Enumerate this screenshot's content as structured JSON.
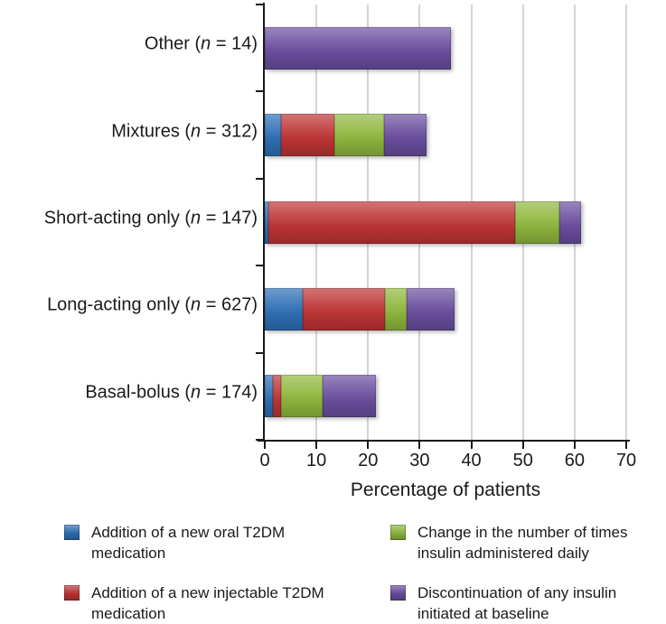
{
  "chart_data": {
    "type": "bar",
    "orientation": "horizontal",
    "stacked": true,
    "title": "",
    "xlabel": "Percentage of patients",
    "ylabel": "",
    "xlim": [
      0,
      70
    ],
    "xticks": [
      0,
      10,
      20,
      30,
      40,
      50,
      60,
      70
    ],
    "grid": true,
    "legend_position": "bottom",
    "categories": [
      {
        "name": "Other",
        "n_label": "n",
        "n_value": "14"
      },
      {
        "name": "Mixtures",
        "n_label": "n",
        "n_value": "312"
      },
      {
        "name": "Short-acting only",
        "n_label": "n",
        "n_value": "147"
      },
      {
        "name": "Long-acting only",
        "n_label": "n",
        "n_value": "627"
      },
      {
        "name": "Basal-bolus",
        "n_label": "n",
        "n_value": "174"
      }
    ],
    "series": [
      {
        "name": "Addition of a new oral T2DM medication",
        "legend_lines": [
          "Addition of a new oral T2DM",
          "medication"
        ],
        "color": "#2E6FB5",
        "values": [
          0,
          3.1,
          0.7,
          7.3,
          1.5
        ]
      },
      {
        "name": "Addition of a new injectable T2DM medication",
        "legend_lines": [
          "Addition of a new injectable T2DM",
          "medication"
        ],
        "color": "#BE3435",
        "values": [
          0,
          10.3,
          47.7,
          16.0,
          1.6
        ]
      },
      {
        "name": "Change in the number of times insulin administered daily",
        "legend_lines": [
          "Change in the number of times",
          "insulin administered daily"
        ],
        "color": "#8FB73E",
        "values": [
          0,
          9.7,
          8.7,
          4.1,
          8.1
        ]
      },
      {
        "name": "Discontinuation of any insulin initiated at baseline",
        "legend_lines": [
          "Discontinuation of any insulin",
          "initiated at baseline"
        ],
        "color": "#6A4E9E",
        "values": [
          36.1,
          8.2,
          4.1,
          9.3,
          10.3
        ]
      }
    ]
  },
  "colors": {
    "gridline": "#a9a9a9",
    "axis": "#1a1a1a",
    "text": "#1a1a1a",
    "background": "#ffffff"
  }
}
